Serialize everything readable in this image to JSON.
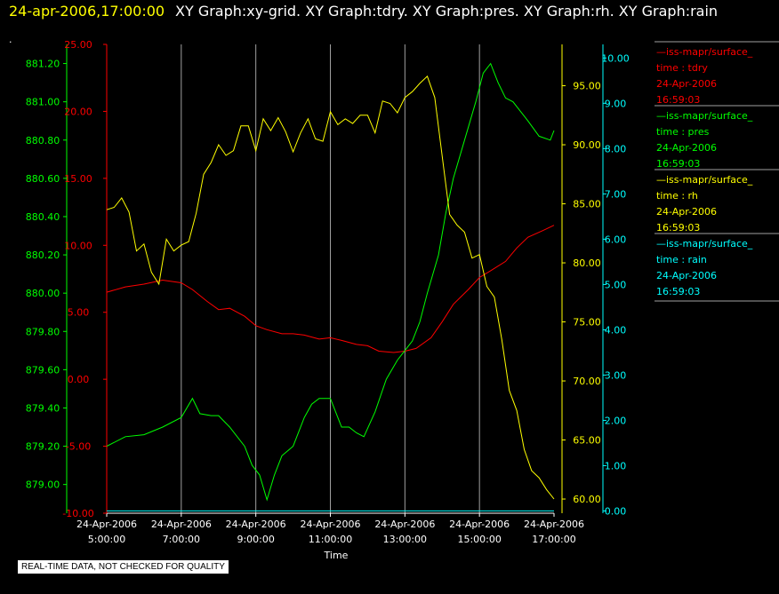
{
  "header": {
    "timestamp": "24-apr-2006,17:00:00",
    "titles": "XY Graph:xy-grid.  XY Graph:tdry.  XY Graph:pres.  XY Graph:rh.  XY Graph:rain",
    "dot": "."
  },
  "notice": "REAL-TIME DATA, NOT CHECKED FOR QUALITY",
  "chart_data": {
    "type": "line",
    "xlabel": "Time",
    "x_ticks": [
      {
        "date": "24-Apr-2006",
        "time": "5:00:00"
      },
      {
        "date": "24-Apr-2006",
        "time": "7:00:00"
      },
      {
        "date": "24-Apr-2006",
        "time": "9:00:00"
      },
      {
        "date": "24-Apr-2006",
        "time": "11:00:00"
      },
      {
        "date": "24-Apr-2006",
        "time": "13:00:00"
      },
      {
        "date": "24-Apr-2006",
        "time": "15:00:00"
      },
      {
        "date": "24-Apr-2006",
        "time": "17:00:00"
      }
    ],
    "x_range": [
      5,
      17
    ],
    "grid": "vertical",
    "legend_position": "right",
    "axes": {
      "tdry": {
        "color": "#ff0000",
        "range": [
          -10,
          25
        ],
        "ticks": [
          "-10.00",
          "-5.00",
          "0.00",
          "5.00",
          "10.00",
          "15.00",
          "20.00",
          "25.00"
        ]
      },
      "pres": {
        "color": "#00ff00",
        "range": [
          878.85,
          881.3
        ],
        "ticks": [
          "879.00",
          "879.20",
          "879.40",
          "879.60",
          "879.80",
          "880.00",
          "880.20",
          "880.40",
          "880.60",
          "880.80",
          "881.00",
          "881.20"
        ]
      },
      "rh": {
        "color": "#ffff00",
        "range": [
          58.8,
          98.5
        ],
        "ticks": [
          "60.00",
          "65.00",
          "70.00",
          "75.00",
          "80.00",
          "85.00",
          "90.00",
          "95.00"
        ]
      },
      "rain": {
        "color": "#00ffff",
        "range": [
          -0.05,
          10.3
        ],
        "ticks": [
          "0.00",
          "1.00",
          "2.00",
          "3.00",
          "4.00",
          "5.00",
          "6.00",
          "7.00",
          "8.00",
          "9.00",
          "10.00"
        ]
      }
    },
    "legend": [
      {
        "line": "—iss-mapr/surface_",
        "var": "time : tdry",
        "date": "24-Apr-2006",
        "time": "16:59:03",
        "color": "#ff0000"
      },
      {
        "line": "—iss-mapr/surface_",
        "var": "time : pres",
        "date": "24-Apr-2006",
        "time": "16:59:03",
        "color": "#00ff00"
      },
      {
        "line": "—iss-mapr/surface_",
        "var": "time : rh",
        "date": "24-Apr-2006",
        "time": "16:59:03",
        "color": "#ffff00"
      },
      {
        "line": "—iss-mapr/surface_",
        "var": "time : rain",
        "date": "24-Apr-2006",
        "time": "16:59:03",
        "color": "#00ffff"
      }
    ],
    "series": [
      {
        "key": "tdry",
        "color": "#ff0000",
        "x": [
          5.0,
          5.5,
          6.0,
          6.5,
          7.0,
          7.3,
          7.7,
          8.0,
          8.3,
          8.7,
          9.0,
          9.3,
          9.7,
          10.0,
          10.3,
          10.7,
          11.0,
          11.3,
          11.7,
          12.0,
          12.3,
          12.7,
          13.0,
          13.3,
          13.7,
          14.0,
          14.3,
          14.7,
          15.0,
          15.3,
          15.7,
          16.0,
          16.3,
          16.7,
          17.0
        ],
        "y": [
          6.5,
          6.9,
          7.1,
          7.4,
          7.2,
          6.7,
          5.8,
          5.2,
          5.3,
          4.7,
          4.0,
          3.7,
          3.4,
          3.4,
          3.3,
          3.0,
          3.1,
          2.9,
          2.6,
          2.5,
          2.1,
          2.0,
          2.1,
          2.3,
          3.1,
          4.3,
          5.6,
          6.7,
          7.6,
          8.1,
          8.8,
          9.8,
          10.6,
          11.1,
          11.5
        ]
      },
      {
        "key": "pres",
        "color": "#00ff00",
        "x": [
          5.0,
          5.5,
          6.0,
          6.5,
          7.0,
          7.3,
          7.5,
          7.8,
          8.0,
          8.3,
          8.7,
          8.9,
          9.1,
          9.3,
          9.5,
          9.7,
          10.0,
          10.3,
          10.5,
          10.7,
          11.0,
          11.3,
          11.5,
          11.7,
          11.9,
          12.2,
          12.5,
          12.8,
          13.0,
          13.2,
          13.4,
          13.6,
          13.9,
          14.1,
          14.3,
          14.6,
          14.9,
          15.1,
          15.3,
          15.5,
          15.7,
          15.9,
          16.1,
          16.3,
          16.6,
          16.9,
          17.0
        ],
        "y": [
          879.2,
          879.25,
          879.26,
          879.3,
          879.35,
          879.45,
          879.37,
          879.36,
          879.36,
          879.3,
          879.2,
          879.1,
          879.05,
          878.92,
          879.05,
          879.15,
          879.2,
          879.35,
          879.42,
          879.45,
          879.45,
          879.3,
          879.3,
          879.27,
          879.25,
          879.38,
          879.55,
          879.65,
          879.7,
          879.75,
          879.85,
          880.0,
          880.2,
          880.42,
          880.6,
          880.8,
          881.0,
          881.15,
          881.2,
          881.1,
          881.02,
          881.0,
          880.95,
          880.9,
          880.82,
          880.8,
          880.85
        ]
      },
      {
        "key": "rh",
        "color": "#ffff00",
        "x": [
          5.0,
          5.2,
          5.4,
          5.6,
          5.8,
          6.0,
          6.2,
          6.4,
          6.6,
          6.8,
          7.0,
          7.2,
          7.4,
          7.6,
          7.8,
          8.0,
          8.2,
          8.4,
          8.6,
          8.8,
          9.0,
          9.2,
          9.4,
          9.6,
          9.8,
          10.0,
          10.2,
          10.4,
          10.6,
          10.8,
          11.0,
          11.2,
          11.4,
          11.6,
          11.8,
          12.0,
          12.2,
          12.4,
          12.6,
          12.8,
          13.0,
          13.2,
          13.4,
          13.6,
          13.8,
          14.0,
          14.2,
          14.4,
          14.6,
          14.8,
          15.0,
          15.2,
          15.4,
          15.6,
          15.8,
          16.0,
          16.2,
          16.4,
          16.6,
          16.8,
          17.0
        ],
        "y": [
          84.5,
          84.7,
          85.5,
          84.3,
          81.0,
          81.6,
          79.2,
          78.2,
          82.0,
          81.0,
          81.5,
          81.8,
          84.2,
          87.5,
          88.5,
          90.0,
          89.1,
          89.5,
          91.6,
          91.6,
          89.5,
          92.2,
          91.2,
          92.3,
          91.1,
          89.4,
          91.0,
          92.2,
          90.5,
          90.3,
          92.8,
          91.7,
          92.2,
          91.8,
          92.5,
          92.5,
          91.0,
          93.7,
          93.5,
          92.7,
          94.0,
          94.5,
          95.2,
          95.8,
          94.0,
          89.0,
          84.1,
          83.2,
          82.6,
          80.4,
          80.7,
          78.0,
          77.1,
          73.5,
          69.2,
          67.5,
          64.2,
          62.4,
          61.8,
          60.8,
          60.0
        ]
      },
      {
        "key": "rain",
        "color": "#00ffff",
        "x": [
          5.0,
          17.0
        ],
        "y": [
          0.0,
          0.0
        ]
      }
    ]
  }
}
